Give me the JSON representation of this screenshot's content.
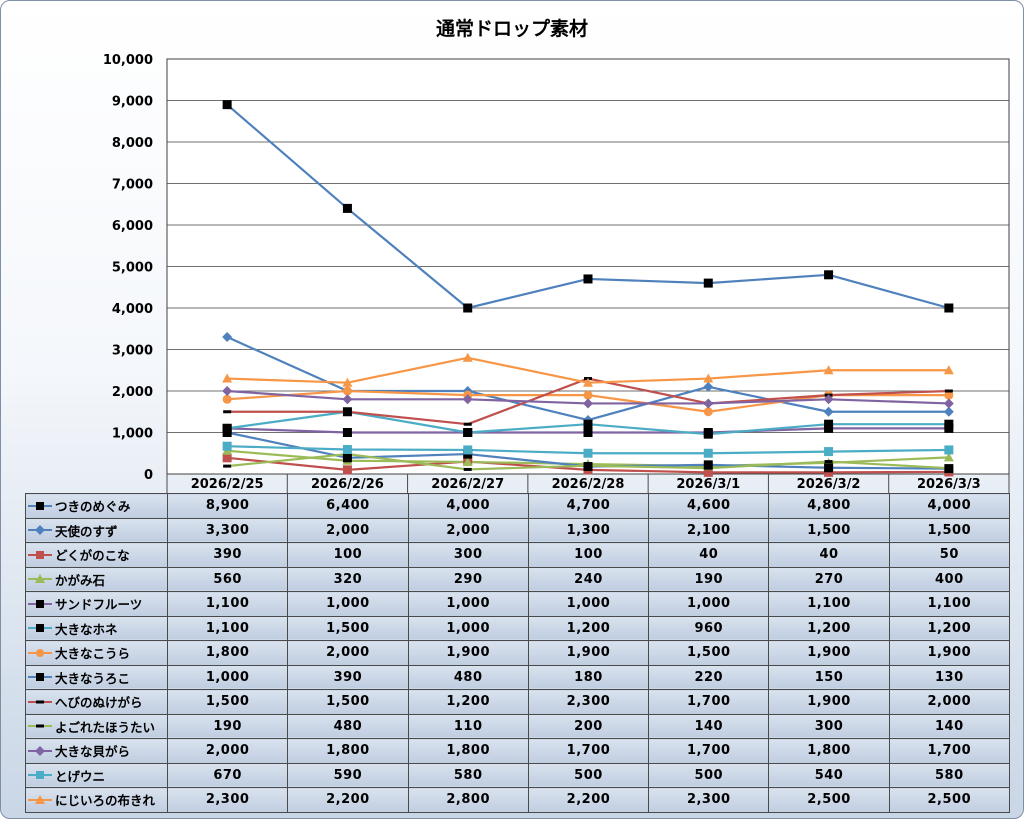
{
  "chart_data": {
    "type": "line",
    "title": "通常ドロップ素材",
    "xlabel": "",
    "ylabel": "",
    "ylim": [
      0,
      10000
    ],
    "yticks": [
      0,
      1000,
      2000,
      3000,
      4000,
      5000,
      6000,
      7000,
      8000,
      9000,
      10000
    ],
    "ytick_labels": [
      "0",
      "1,000",
      "2,000",
      "3,000",
      "4,000",
      "5,000",
      "6,000",
      "7,000",
      "8,000",
      "9,000",
      "10,000"
    ],
    "grid": true,
    "legend": "data-table",
    "categories": [
      "2026/2/25",
      "2026/2/26",
      "2026/2/27",
      "2026/2/28",
      "2026/3/1",
      "2026/3/2",
      "2026/3/3"
    ],
    "series": [
      {
        "name": "つきのめぐみ",
        "color": "#4f81bd",
        "marker": "square",
        "marker_color": "#000000",
        "values": [
          8900,
          6400,
          4000,
          4700,
          4600,
          4800,
          4000
        ],
        "labels": [
          "8,900",
          "6,400",
          "4,000",
          "4,700",
          "4,600",
          "4,800",
          "4,000"
        ]
      },
      {
        "name": "天使のすず",
        "color": "#4f81bd",
        "marker": "diamond",
        "marker_color": "#4f81bd",
        "values": [
          3300,
          2000,
          2000,
          1300,
          2100,
          1500,
          1500
        ],
        "labels": [
          "3,300",
          "2,000",
          "2,000",
          "1,300",
          "2,100",
          "1,500",
          "1,500"
        ]
      },
      {
        "name": "どくがのこな",
        "color": "#c0504d",
        "marker": "square",
        "marker_color": "#c0504d",
        "values": [
          390,
          100,
          300,
          100,
          40,
          40,
          50
        ],
        "labels": [
          "390",
          "100",
          "300",
          "100",
          "40",
          "40",
          "50"
        ]
      },
      {
        "name": "かがみ石",
        "color": "#9bbb59",
        "marker": "triangle",
        "marker_color": "#9bbb59",
        "values": [
          560,
          320,
          290,
          240,
          190,
          270,
          400
        ],
        "labels": [
          "560",
          "320",
          "290",
          "240",
          "190",
          "270",
          "400"
        ]
      },
      {
        "name": "サンドフルーツ",
        "color": "#8064a2",
        "marker": "square",
        "marker_color": "#000000",
        "values": [
          1100,
          1000,
          1000,
          1000,
          1000,
          1100,
          1100
        ],
        "labels": [
          "1,100",
          "1,000",
          "1,000",
          "1,000",
          "1,000",
          "1,100",
          "1,100"
        ]
      },
      {
        "name": "大きなホネ",
        "color": "#4bacc6",
        "marker": "square",
        "marker_color": "#000000",
        "values": [
          1100,
          1500,
          1000,
          1200,
          960,
          1200,
          1200
        ],
        "labels": [
          "1,100",
          "1,500",
          "1,000",
          "1,200",
          "960",
          "1,200",
          "1,200"
        ]
      },
      {
        "name": "大きなこうら",
        "color": "#f79646",
        "marker": "circle",
        "marker_color": "#f79646",
        "values": [
          1800,
          2000,
          1900,
          1900,
          1500,
          1900,
          1900
        ],
        "labels": [
          "1,800",
          "2,000",
          "1,900",
          "1,900",
          "1,500",
          "1,900",
          "1,900"
        ]
      },
      {
        "name": "大きなうろこ",
        "color": "#4f81bd",
        "marker": "square",
        "marker_color": "#000000",
        "values": [
          1000,
          390,
          480,
          180,
          220,
          150,
          130
        ],
        "labels": [
          "1,000",
          "390",
          "480",
          "180",
          "220",
          "150",
          "130"
        ]
      },
      {
        "name": "へびのぬけがら",
        "color": "#c0504d",
        "marker": "dash",
        "marker_color": "#000000",
        "values": [
          1500,
          1500,
          1200,
          2300,
          1700,
          1900,
          2000
        ],
        "labels": [
          "1,500",
          "1,500",
          "1,200",
          "2,300",
          "1,700",
          "1,900",
          "2,000"
        ]
      },
      {
        "name": "よごれたほうたい",
        "color": "#9bbb59",
        "marker": "dash",
        "marker_color": "#000000",
        "values": [
          190,
          480,
          110,
          200,
          140,
          300,
          140
        ],
        "labels": [
          "190",
          "480",
          "110",
          "200",
          "140",
          "300",
          "140"
        ]
      },
      {
        "name": "大きな貝がら",
        "color": "#8064a2",
        "marker": "diamond",
        "marker_color": "#8064a2",
        "values": [
          2000,
          1800,
          1800,
          1700,
          1700,
          1800,
          1700
        ],
        "labels": [
          "2,000",
          "1,800",
          "1,800",
          "1,700",
          "1,700",
          "1,800",
          "1,700"
        ]
      },
      {
        "name": "とげウニ",
        "color": "#4bacc6",
        "marker": "square",
        "marker_color": "#4bacc6",
        "values": [
          670,
          590,
          580,
          500,
          500,
          540,
          580
        ],
        "labels": [
          "670",
          "590",
          "580",
          "500",
          "500",
          "540",
          "580"
        ]
      },
      {
        "name": "にじいろの布きれ",
        "color": "#f79646",
        "marker": "triangle",
        "marker_color": "#f79646",
        "values": [
          2300,
          2200,
          2800,
          2200,
          2300,
          2500,
          2500
        ],
        "labels": [
          "2,300",
          "2,200",
          "2,800",
          "2,200",
          "2,300",
          "2,500",
          "2,500"
        ]
      }
    ]
  }
}
